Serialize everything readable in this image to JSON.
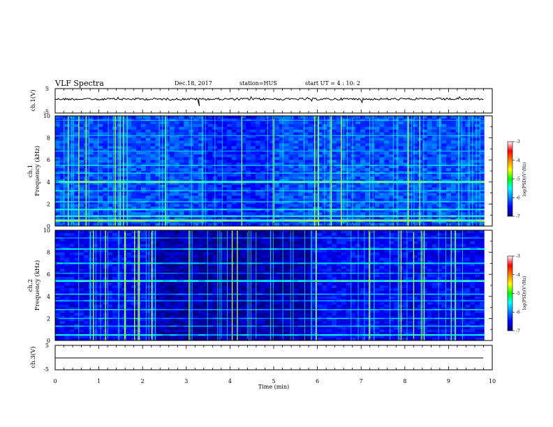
{
  "header": {
    "title": "VLF Spectra",
    "date": "Dec.18, 2017",
    "station": "station=HUS",
    "start": "start  UT =   4 : 10: 2"
  },
  "chart_data": [
    {
      "type": "line",
      "name": "waveform-ch1",
      "ylabel": "ch.1(V)",
      "ylim": [
        -5,
        5
      ],
      "yticks": [
        "5",
        "-5"
      ],
      "xlim": [
        0,
        10
      ]
    },
    {
      "type": "heatmap",
      "name": "spectrogram-ch1",
      "ylabel_ch": "ch.1",
      "ylabel": "Frequency (kHz)",
      "ylim": [
        0,
        10
      ],
      "yticks": [
        "0",
        "2",
        "4",
        "6",
        "8",
        "10"
      ],
      "xlim": [
        0,
        9.82
      ],
      "colorbar": {
        "label": "log(PSD)(V²/Hz)",
        "range": [
          -7,
          -3
        ],
        "ticks": [
          "-3",
          "-4",
          "-5",
          "-6",
          "-7"
        ]
      }
    },
    {
      "type": "heatmap",
      "name": "spectrogram-ch2",
      "ylabel_ch": "ch.2",
      "ylabel": "Frequency (kHz)",
      "ylim": [
        0,
        10
      ],
      "yticks": [
        "0",
        "2",
        "4",
        "6",
        "8",
        "10"
      ],
      "xlim": [
        0,
        9.82
      ],
      "colorbar": {
        "label": "log(PSD)(V²/Hz)",
        "range": [
          -7,
          -3
        ],
        "ticks": [
          "-3",
          "-4",
          "-5",
          "-6",
          "-7"
        ]
      }
    },
    {
      "type": "line",
      "name": "waveform-ch3",
      "ylabel": "ch.3(V)",
      "ylim": [
        -5,
        5
      ],
      "yticks": [
        "5",
        "-5"
      ],
      "xlim": [
        0,
        10
      ]
    }
  ],
  "xaxis": {
    "label": "Time (min)",
    "range": [
      0,
      10
    ],
    "ticks": [
      "0",
      "1",
      "2",
      "3",
      "4",
      "5",
      "6",
      "7",
      "8",
      "9",
      "10"
    ]
  }
}
